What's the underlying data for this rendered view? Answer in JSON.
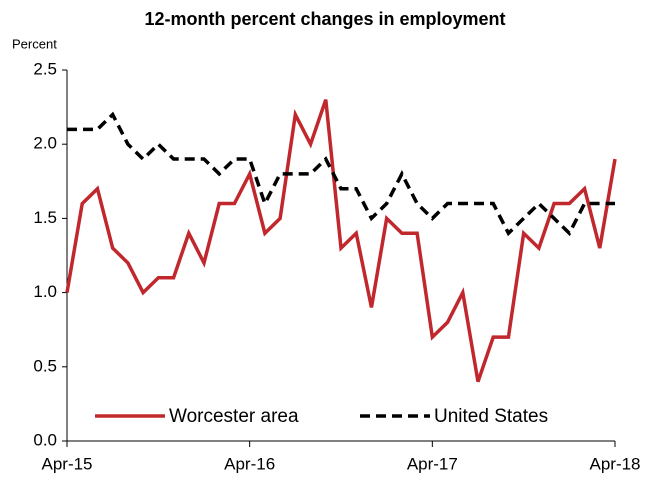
{
  "chart_data": {
    "type": "line",
    "title": "12-month percent changes in employment",
    "y_label": "Percent",
    "categories": [
      "Apr-15",
      null,
      null,
      null,
      null,
      null,
      null,
      null,
      null,
      null,
      null,
      null,
      "Apr-16",
      null,
      null,
      null,
      null,
      null,
      null,
      null,
      null,
      null,
      null,
      null,
      "Apr-17",
      null,
      null,
      null,
      null,
      null,
      null,
      null,
      null,
      null,
      null,
      null,
      "Apr-18"
    ],
    "series": [
      {
        "name": "Worcester area",
        "color": "#c0282d",
        "dash": false,
        "values": [
          1.0,
          1.6,
          1.7,
          1.3,
          1.2,
          1.0,
          1.1,
          1.1,
          1.4,
          1.2,
          1.6,
          1.6,
          1.8,
          1.4,
          1.5,
          2.2,
          2.0,
          2.3,
          1.3,
          1.4,
          0.9,
          1.5,
          1.4,
          1.4,
          0.7,
          0.8,
          1.0,
          0.4,
          0.7,
          0.7,
          1.4,
          1.3,
          1.6,
          1.6,
          1.7,
          1.3,
          1.9
        ]
      },
      {
        "name": "United States",
        "color": "#000000",
        "dash": true,
        "values": [
          2.1,
          2.1,
          2.1,
          2.2,
          2.0,
          1.9,
          2.0,
          1.9,
          1.9,
          1.9,
          1.8,
          1.9,
          1.9,
          1.6,
          1.8,
          1.8,
          1.8,
          1.9,
          1.7,
          1.7,
          1.5,
          1.6,
          1.8,
          1.6,
          1.5,
          1.6,
          1.6,
          1.6,
          1.6,
          1.4,
          1.5,
          1.6,
          1.5,
          1.4,
          1.6,
          1.6,
          1.6
        ]
      }
    ],
    "ylim": [
      0,
      2.5
    ],
    "yticks": [
      {
        "value": 0,
        "label": "0.0"
      },
      0.5,
      {
        "value": 1,
        "label": "1.0"
      },
      1.5,
      {
        "value": 2,
        "label": "2.0"
      },
      2.5
    ],
    "grid": false,
    "legend": "bottom"
  }
}
